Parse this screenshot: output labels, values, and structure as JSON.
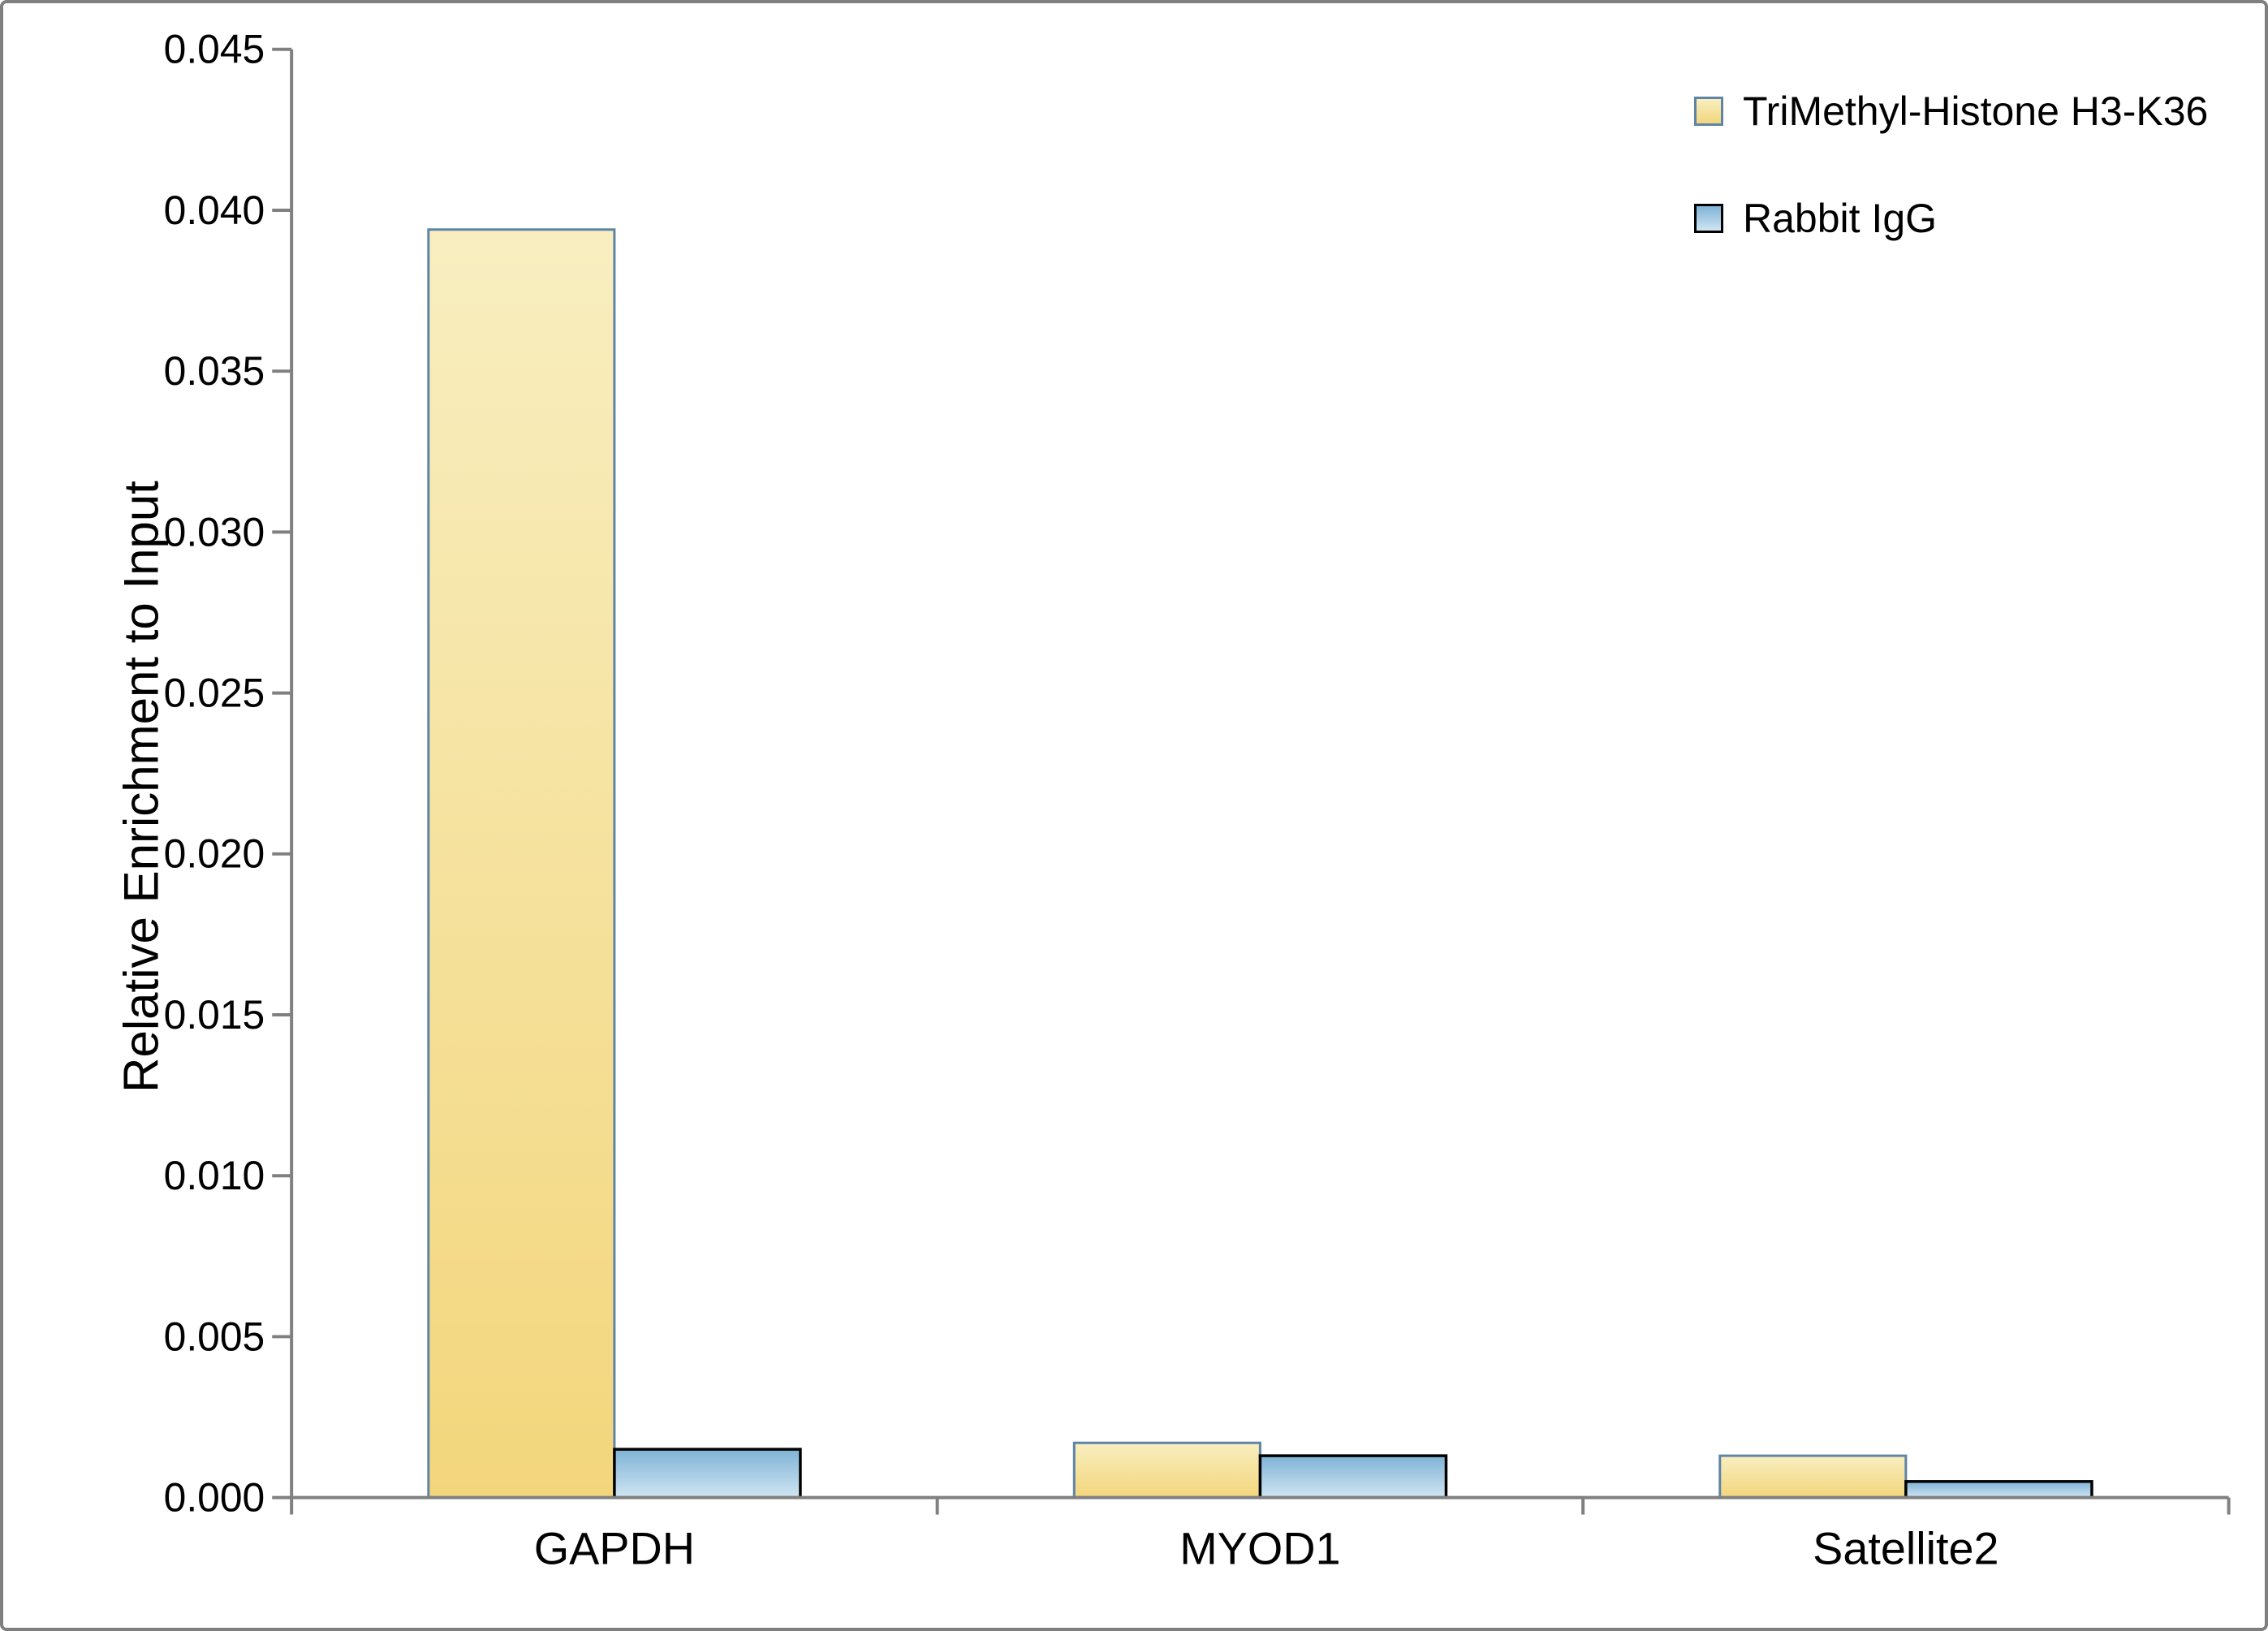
{
  "chart_data": {
    "type": "bar",
    "title": "",
    "ylabel": "Relative Enrichment to Input",
    "xlabel": "",
    "categories": [
      "GAPDH",
      "MYOD1",
      "Satellite2"
    ],
    "series": [
      {
        "name": "TriMethyl-Histone H3-K36",
        "values": [
          0.0394,
          0.0017,
          0.0013
        ],
        "fill_top": "#F8EEC0",
        "fill_bottom": "#F3D67C",
        "border": "#5E84A6"
      },
      {
        "name": "Rabbit IgG",
        "values": [
          0.0015,
          0.0013,
          0.0005
        ],
        "fill_top": "#7FB3D6",
        "fill_bottom": "#D0E5F2",
        "border": "#000000"
      }
    ],
    "ylim": [
      0,
      0.045
    ],
    "ytick_step": 0.005,
    "ytick_labels": [
      "0.000",
      "0.005",
      "0.010",
      "0.015",
      "0.020",
      "0.025",
      "0.030",
      "0.035",
      "0.040",
      "0.045"
    ],
    "grid": false,
    "legend_position": "top-right",
    "axis_color": "#808080",
    "frame_color": "#7f7f7f",
    "text_color": "#000000"
  }
}
